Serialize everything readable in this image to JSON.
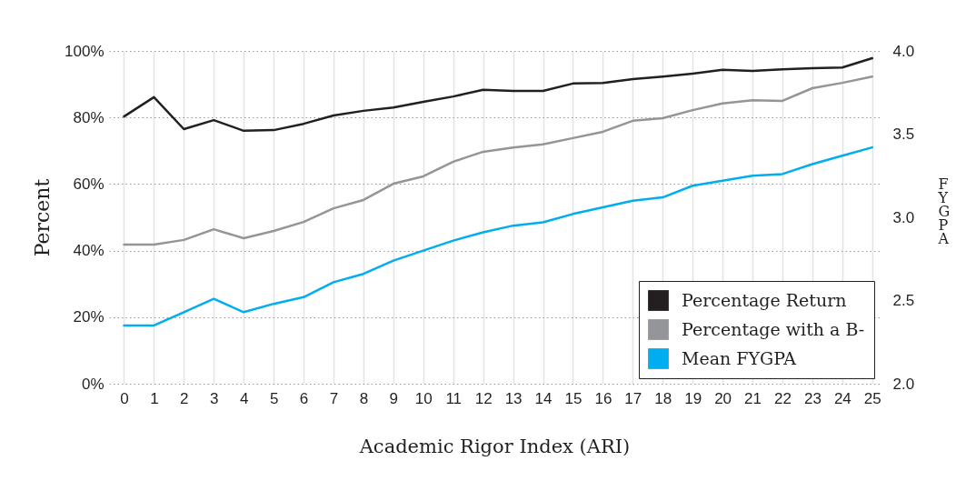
{
  "chart_data": {
    "type": "line",
    "xlabel": "Academic Rigor Index (ARI)",
    "ylabel": "Percent",
    "y2label": "FYGPA",
    "x": [
      0,
      1,
      2,
      3,
      4,
      5,
      6,
      7,
      8,
      9,
      10,
      11,
      12,
      13,
      14,
      15,
      16,
      17,
      18,
      19,
      20,
      21,
      22,
      23,
      24,
      25
    ],
    "series": [
      {
        "name": "Percentage Return",
        "color": "#231f20",
        "values": [
          80.3,
          86.1,
          76.5,
          79.2,
          76.0,
          76.2,
          78.1,
          80.6,
          82,
          83,
          84.7,
          86.3,
          88.3,
          88,
          88,
          90.2,
          90.4,
          91.5,
          92.3,
          93.2,
          94.3,
          94,
          94.5,
          94.8,
          95,
          97.8
        ]
      },
      {
        "name": "Percentage with a B-",
        "color": "#939598",
        "values": [
          41.8,
          41.8,
          43.2,
          46.4,
          43.7,
          45.9,
          48.6,
          52.7,
          55.2,
          60.1,
          62.3,
          66.7,
          69.7,
          71,
          71.9,
          73.8,
          75.7,
          79,
          79.8,
          82.2,
          84.2,
          85.2,
          85,
          88.8,
          90.4,
          92.3
        ]
      },
      {
        "name": "Mean FYGPA",
        "color": "#00aeef",
        "axis": "y2",
        "values": [
          2.35,
          2.35,
          2.43,
          2.51,
          2.43,
          2.48,
          2.52,
          2.61,
          2.66,
          2.74,
          2.8,
          2.86,
          2.91,
          2.95,
          2.97,
          3.02,
          3.06,
          3.1,
          3.12,
          3.19,
          3.22,
          3.25,
          3.26,
          3.32,
          3.37,
          3.42
        ]
      }
    ],
    "xlim": [
      -0.5,
      25.25
    ],
    "xticks": [
      0,
      1,
      2,
      3,
      4,
      5,
      6,
      7,
      8,
      9,
      10,
      11,
      12,
      13,
      14,
      15,
      16,
      17,
      18,
      19,
      20,
      21,
      22,
      23,
      24,
      25
    ],
    "ylim": [
      0,
      100
    ],
    "yticks": [
      {
        "value": 0,
        "label": "0%"
      },
      {
        "value": 20,
        "label": "20%"
      },
      {
        "value": 40,
        "label": "40%"
      },
      {
        "value": 60,
        "label": "60%"
      },
      {
        "value": 80,
        "label": "80%"
      },
      {
        "value": 100,
        "label": "100%"
      }
    ],
    "y2lim": [
      2,
      4
    ],
    "y2ticks": [
      {
        "value": 2,
        "label": "2.0"
      },
      {
        "value": 2.5,
        "label": "2.5"
      },
      {
        "value": 3,
        "label": "3.0"
      },
      {
        "value": 3.5,
        "label": "3.5"
      },
      {
        "value": 4,
        "label": "4.0"
      }
    ],
    "grid": true,
    "legend": "bottom right",
    "line_style": "solid"
  }
}
